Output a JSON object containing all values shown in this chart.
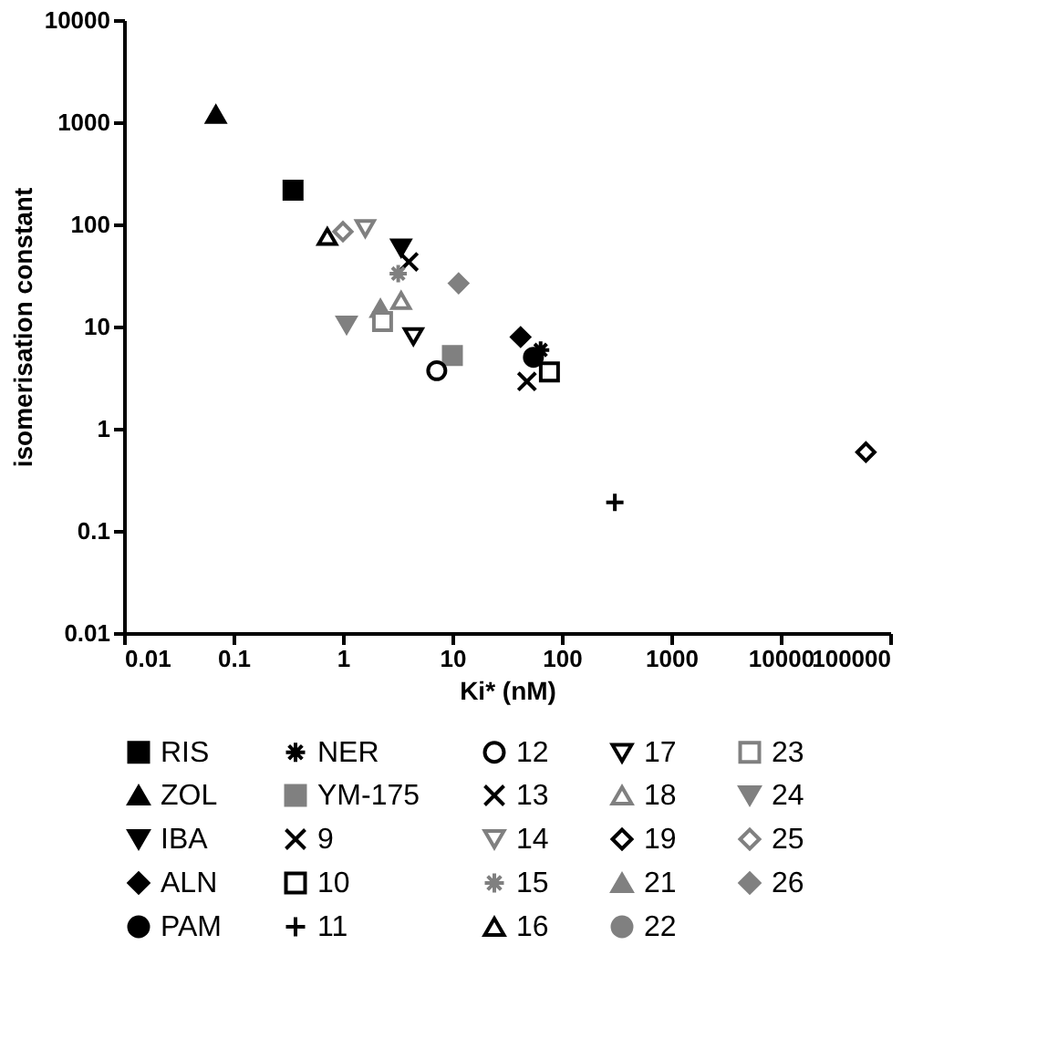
{
  "chart_data": {
    "type": "scatter",
    "xlabel": "Ki* (nM)",
    "ylabel": "isomerisation constant",
    "log": "xy",
    "xlim": [
      0.01,
      100000
    ],
    "xticks": [
      0.01,
      0.1,
      1,
      10,
      100,
      1000,
      10000,
      100000
    ],
    "ylim": [
      0.01,
      10000
    ],
    "yticks": [
      0.01,
      0.1,
      1,
      10,
      100,
      1000,
      10000
    ],
    "grid": false,
    "legend": "bottom",
    "series": [
      {
        "name": "RIS",
        "color": "#000000",
        "marker": "square",
        "x": [
          0.35
        ],
        "values": [
          216
        ]
      },
      {
        "name": "ZOL",
        "color": "#000000",
        "marker": "triangle",
        "x": [
          0.069
        ],
        "values": [
          1190
        ]
      },
      {
        "name": "IBA",
        "color": "#000000",
        "marker": "triangle-down",
        "x": [
          3.4
        ],
        "values": [
          59
        ]
      },
      {
        "name": "ALN",
        "color": "#000000",
        "marker": "diamond",
        "x": [
          42
        ],
        "values": [
          7.9
        ]
      },
      {
        "name": "PAM",
        "color": "#000000",
        "marker": "circle",
        "x": [
          55
        ],
        "values": [
          5.0
        ]
      },
      {
        "name": "NER",
        "color": "#000000",
        "marker": "cross",
        "x": [
          64
        ],
        "values": [
          5.9
        ]
      },
      {
        "name": "YM-175",
        "color": "#808080",
        "marker": "square",
        "x": [
          10
        ],
        "values": [
          5.2
        ]
      },
      {
        "name": "9",
        "color": "#000000",
        "marker": "x",
        "x": [
          48
        ],
        "values": [
          2.9
        ]
      },
      {
        "name": "10",
        "color": "#000000",
        "marker": "square-open",
        "x": [
          77
        ],
        "values": [
          3.6
        ]
      },
      {
        "name": "11",
        "color": "#000000",
        "marker": "plus",
        "x": [
          305
        ],
        "values": [
          0.19
        ]
      },
      {
        "name": "12",
        "color": "#000000",
        "marker": "circle-open",
        "x": [
          7.2
        ],
        "values": [
          3.7
        ]
      },
      {
        "name": "13",
        "color": "#000000",
        "marker": "x",
        "x": [
          4.0
        ],
        "values": [
          43
        ]
      },
      {
        "name": "14",
        "color": "#808080",
        "marker": "triangle-down-open",
        "x": [
          1.6
        ],
        "values": [
          91
        ]
      },
      {
        "name": "15",
        "color": "#808080",
        "marker": "cross",
        "x": [
          3.2
        ],
        "values": [
          33
        ]
      },
      {
        "name": "16",
        "color": "#000000",
        "marker": "triangle-open",
        "x": [
          0.72
        ],
        "values": [
          76
        ]
      },
      {
        "name": "17",
        "color": "#000000",
        "marker": "triangle-down-open",
        "x": [
          4.4
        ],
        "values": [
          8.0
        ]
      },
      {
        "name": "18",
        "color": "#808080",
        "marker": "triangle-open",
        "x": [
          3.4
        ],
        "values": [
          18
        ]
      },
      {
        "name": "19",
        "color": "#000000",
        "marker": "diamond-open",
        "x": [
          60000
        ],
        "values": [
          0.59
        ]
      },
      {
        "name": "21",
        "color": "#808080",
        "marker": "triangle",
        "x": [
          2.2
        ],
        "values": [
          15
        ]
      },
      {
        "name": "22",
        "color": "#808080",
        "marker": "circle",
        "x": [
          null
        ],
        "values": [
          null
        ]
      },
      {
        "name": "23",
        "color": "#808080",
        "marker": "square-open",
        "x": [
          2.3
        ],
        "values": [
          11.2
        ]
      },
      {
        "name": "24",
        "color": "#808080",
        "marker": "triangle-down",
        "x": [
          1.08
        ],
        "values": [
          10.4
        ]
      },
      {
        "name": "25",
        "color": "#808080",
        "marker": "diamond-open",
        "x": [
          1.0
        ],
        "values": [
          85
        ]
      },
      {
        "name": "26",
        "color": "#808080",
        "marker": "diamond",
        "x": [
          11.4
        ],
        "values": [
          26.5
        ]
      }
    ]
  }
}
